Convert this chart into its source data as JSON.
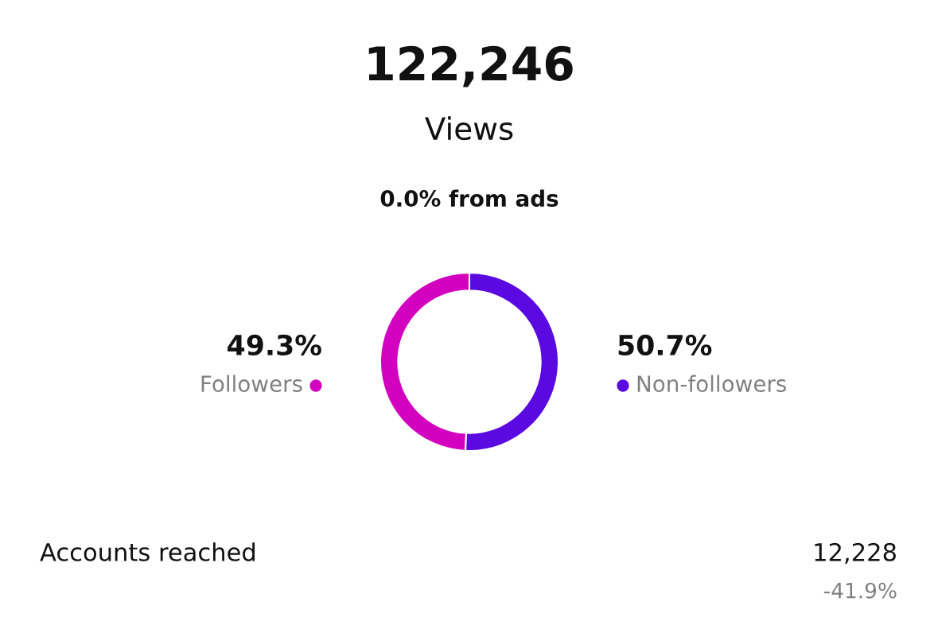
{
  "chart_data": {
    "type": "donut",
    "title": "122,246",
    "subtitle": "Views",
    "categories": [
      "Followers",
      "Non-followers"
    ],
    "values": [
      49.3,
      50.7
    ],
    "colors": [
      "#d400c0",
      "#5a0ae0"
    ],
    "value_labels": [
      "49.3%",
      "50.7%"
    ],
    "annotations": [
      "0.0% from ads",
      "Accounts reached",
      "12,228",
      "-41.9%"
    ]
  }
}
